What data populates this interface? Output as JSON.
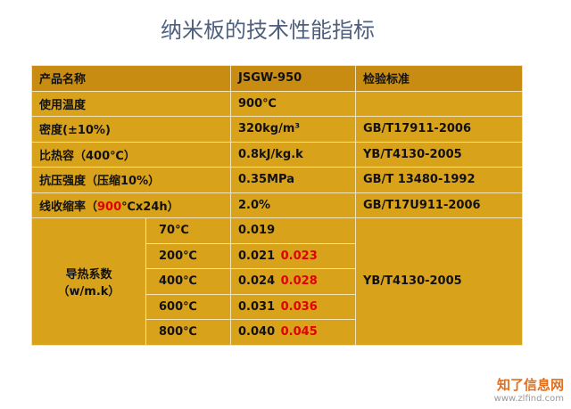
{
  "title": "纳米板的技术性能指标",
  "table": {
    "header": [
      "产品名称",
      "JSGW-950",
      "检验标准"
    ],
    "rows": [
      {
        "label": "使用温度",
        "value": "900℃",
        "standard": ""
      },
      {
        "label": "密度(±10%)",
        "value": "320kg/m³",
        "standard": "GB/T17911-2006"
      },
      {
        "label": "比热容（400℃）",
        "value": "0.8kJ/kg.k",
        "standard": "YB/T4130-2005"
      },
      {
        "label": "抗压强度（压缩10%）",
        "value": "0.35MPa",
        "standard": "GB/T  13480-1992"
      }
    ],
    "shrink": {
      "label_parts": [
        "线收缩率（",
        "900",
        "℃x24h）"
      ],
      "value": "2.0%",
      "standard": "GB/T17U911-2006"
    },
    "thermal": {
      "label": "导热系数",
      "unit": "（w/m.k）",
      "standard": "YB/T4130-2005",
      "rows": [
        {
          "temp": "70℃",
          "value": "0.019"
        },
        {
          "temp": "200℃",
          "value": "0.021",
          "alt": "0.023"
        },
        {
          "temp": "400℃",
          "value": "0.024",
          "alt": "0.028"
        },
        {
          "temp": "600℃",
          "value": "0.031",
          "alt": "0.036"
        },
        {
          "temp": "800℃",
          "value": "0.040",
          "alt": "0.045"
        }
      ]
    }
  },
  "watermark": {
    "name": "知了信息网",
    "url": "www.zlfind.com"
  }
}
